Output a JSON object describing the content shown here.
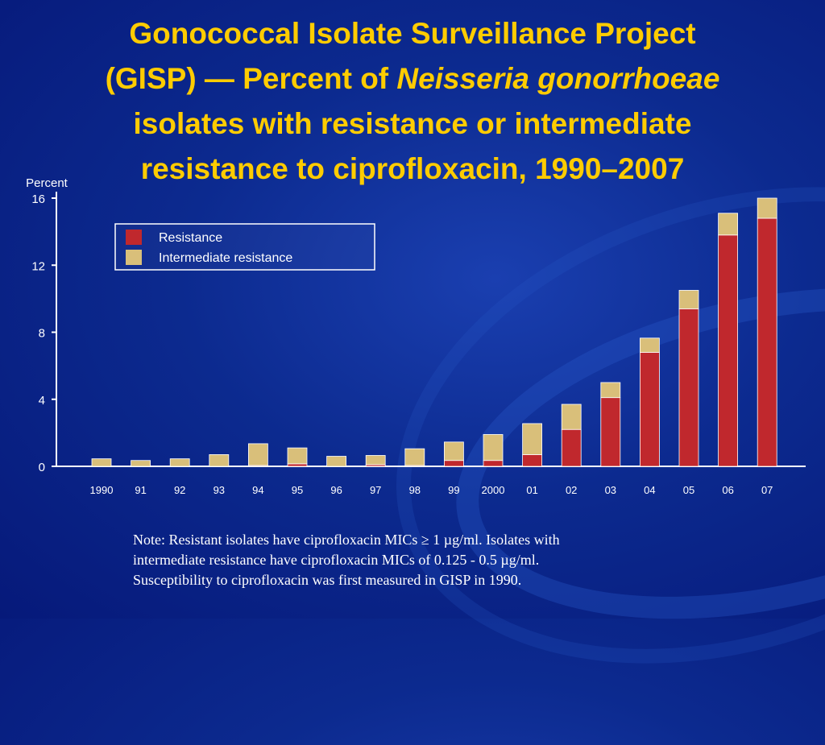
{
  "slide": {
    "title_line1": "Gonococcal Isolate Surveillance Project",
    "title_line2_pre": "(GISP) — Percent of ",
    "title_line2_em": "Neisseria gonorrhoeae",
    "title_line3": "isolates with resistance or intermediate",
    "title_line4": "resistance to ciprofloxacin, 1990–2007",
    "footnote_lines": [
      "Note: Resistant isolates have ciprofloxacin MICs ≥ 1 µg/ml. Isolates with",
      "intermediate resistance have ciprofloxacin MICs of 0.125 - 0.5 µg/ml.",
      "Susceptibility to ciprofloxacin was first measured in GISP in 1990."
    ]
  },
  "colors": {
    "background": "#0c2a8f",
    "title": "#ffcc00",
    "resistance": "#c0282d",
    "intermediate": "#d9bf7a",
    "axis": "#ffffff"
  },
  "chart_data": {
    "type": "bar",
    "stacked": true,
    "title": "",
    "ylabel": "Percent",
    "xlabel": "",
    "ylim": [
      0,
      16
    ],
    "yticks": [
      0,
      4,
      8,
      12,
      16
    ],
    "legend_position": "top-left",
    "categories": [
      "1990",
      "91",
      "92",
      "93",
      "94",
      "95",
      "96",
      "97",
      "98",
      "99",
      "2000",
      "01",
      "02",
      "03",
      "04",
      "05",
      "06",
      "07"
    ],
    "series": [
      {
        "name": "Resistance",
        "color": "#c0282d",
        "values": [
          0,
          0,
          0,
          0,
          0.05,
          0.15,
          0,
          0.1,
          0.05,
          0.35,
          0.35,
          0.7,
          2.2,
          4.1,
          6.8,
          9.4,
          13.8,
          14.8
        ]
      },
      {
        "name": "Intermediate resistance",
        "color": "#d9bf7a",
        "values": [
          0.45,
          0.35,
          0.45,
          0.7,
          1.3,
          0.95,
          0.6,
          0.55,
          1.0,
          1.1,
          1.55,
          1.85,
          1.5,
          0.9,
          0.85,
          1.1,
          1.3,
          1.2
        ]
      }
    ]
  }
}
